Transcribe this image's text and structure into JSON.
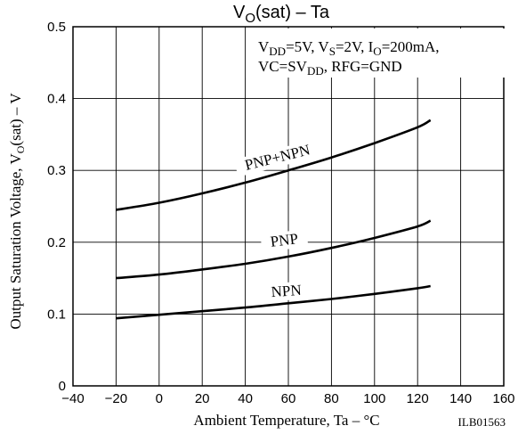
{
  "chart_data": {
    "type": "line",
    "title": {
      "main": "V",
      "sub": "O",
      "rest": "(sat)  –  Ta"
    },
    "xlabel": "Ambient Temperature, Ta  –  °C",
    "ylabel": {
      "pre": "Output Saturation Voltage, V",
      "sub": "O",
      "post": "(sat)  –  V"
    },
    "xlim": [
      -40,
      160
    ],
    "ylim": [
      0,
      0.5
    ],
    "xticks": [
      -40,
      -20,
      0,
      20,
      40,
      60,
      80,
      100,
      120,
      140,
      160
    ],
    "yticks": [
      0,
      0.1,
      0.2,
      0.3,
      0.4,
      0.5
    ],
    "xtick_labels": [
      "−40",
      "−20",
      "0",
      "20",
      "40",
      "60",
      "80",
      "100",
      "120",
      "140",
      "160"
    ],
    "ytick_labels": [
      "0",
      "0.1",
      "0.2",
      "0.3",
      "0.4",
      "0.5"
    ],
    "grid": true,
    "conditions": {
      "line1": [
        {
          "t": "V",
          "s": ""
        },
        {
          "t": "DD",
          "s": "sub"
        },
        {
          "t": "=5V, V",
          "s": ""
        },
        {
          "t": "S",
          "s": "sub"
        },
        {
          "t": "=2V, I",
          "s": ""
        },
        {
          "t": "O",
          "s": "sub"
        },
        {
          "t": "=200mA,",
          "s": ""
        }
      ],
      "line2": [
        {
          "t": "VC=SV",
          "s": ""
        },
        {
          "t": "DD",
          "s": "sub"
        },
        {
          "t": ", RFG=GND",
          "s": ""
        }
      ]
    },
    "series": [
      {
        "name": "PNP+NPN",
        "x": [
          -20,
          0,
          20,
          40,
          60,
          80,
          100,
          120,
          126
        ],
        "y": [
          0.245,
          0.255,
          0.268,
          0.283,
          0.3,
          0.318,
          0.338,
          0.36,
          0.37
        ]
      },
      {
        "name": "PNP",
        "x": [
          -20,
          0,
          20,
          40,
          60,
          80,
          100,
          120,
          126
        ],
        "y": [
          0.15,
          0.155,
          0.162,
          0.17,
          0.18,
          0.192,
          0.206,
          0.222,
          0.23
        ]
      },
      {
        "name": "NPN",
        "x": [
          -20,
          0,
          20,
          40,
          60,
          80,
          100,
          120,
          126
        ],
        "y": [
          0.094,
          0.099,
          0.104,
          0.109,
          0.115,
          0.121,
          0.128,
          0.136,
          0.139
        ]
      }
    ],
    "footer_code": "ILB01563"
  }
}
